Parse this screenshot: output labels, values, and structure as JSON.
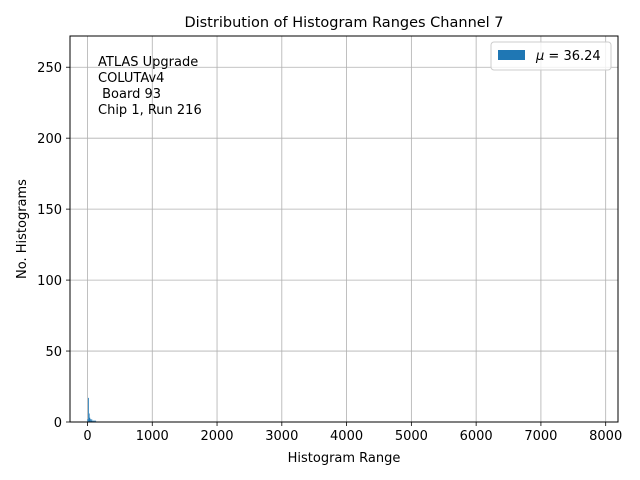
{
  "chart_data": {
    "type": "bar",
    "title": "Distribution of Histogram Ranges Channel 7",
    "xlabel": "Histogram Range",
    "ylabel": "No. Histograms",
    "xlim": [
      -270,
      8190
    ],
    "ylim": [
      0,
      272
    ],
    "x_ticks": [
      0,
      1000,
      2000,
      3000,
      4000,
      5000,
      6000,
      7000,
      8000
    ],
    "x_tick_labels": [
      "0",
      "1000",
      "2000",
      "3000",
      "4000",
      "5000",
      "6000",
      "7000",
      "8000"
    ],
    "y_ticks": [
      0,
      50,
      100,
      150,
      200,
      250
    ],
    "y_tick_labels": [
      "0",
      "50",
      "100",
      "150",
      "200",
      "250"
    ],
    "grid": true,
    "legend_position": "upper right",
    "annotation": [
      "ATLAS Upgrade",
      "COLUTAv4",
      " Board 93",
      "Chip 1, Run 216"
    ],
    "series": [
      {
        "name": "μ = 36.24",
        "color": "#1f77b4",
        "bins": [
          {
            "x": 5,
            "value": 2
          },
          {
            "x": 15,
            "value": 17
          },
          {
            "x": 25,
            "value": 6
          },
          {
            "x": 35,
            "value": 3
          },
          {
            "x": 45,
            "value": 2
          },
          {
            "x": 55,
            "value": 1
          },
          {
            "x": 65,
            "value": 2
          },
          {
            "x": 75,
            "value": 1
          },
          {
            "x": 90,
            "value": 1
          },
          {
            "x": 105,
            "value": 1
          },
          {
            "x": 125,
            "value": 1
          }
        ],
        "bin_width": 10
      }
    ]
  },
  "legend": {
    "mu_symbol": "μ",
    "mu_rest": " = 36.24"
  }
}
